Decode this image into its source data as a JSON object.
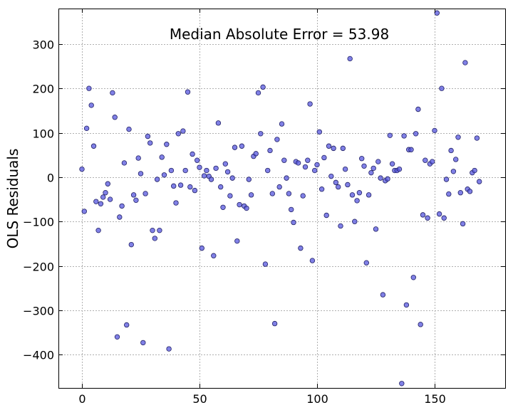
{
  "chart_data": {
    "type": "scatter",
    "title": "",
    "xlabel": "",
    "ylabel": "OLS Residuals",
    "annotation": "Median Absolute Error = 53.98",
    "xlim": [
      -10,
      180
    ],
    "ylim": [
      -475,
      380
    ],
    "xticks": [
      0,
      50,
      100,
      150
    ],
    "yticks": [
      -400,
      -300,
      -200,
      -100,
      0,
      100,
      200,
      300
    ],
    "xtick_labels": [
      "0",
      "50",
      "100",
      "150"
    ],
    "ytick_labels": [
      "−400",
      "−300",
      "−200",
      "−100",
      "0",
      "100",
      "200",
      "300"
    ],
    "grid": true,
    "marker_color": "#5555dd",
    "series": [
      {
        "x": [
          0,
          1,
          2,
          3,
          4,
          5,
          6,
          7,
          8,
          9,
          10,
          11,
          12,
          13,
          14,
          15,
          16,
          17,
          18,
          19,
          20,
          21,
          22,
          23,
          24,
          25,
          26,
          27,
          28,
          29,
          30,
          31,
          32,
          33,
          34,
          35,
          36,
          37,
          38,
          39,
          40,
          41,
          42,
          43,
          44,
          45,
          46,
          47,
          48,
          49,
          50,
          51,
          52,
          53,
          54,
          55,
          56,
          57,
          58,
          59,
          60,
          61,
          62,
          63,
          64,
          65,
          66,
          67,
          68,
          69,
          70,
          71,
          72,
          73,
          74,
          75,
          76,
          77,
          78,
          79,
          80,
          81,
          82,
          83,
          84,
          85,
          86,
          87,
          88,
          89,
          90,
          91,
          92,
          93,
          94,
          95,
          96,
          97,
          98,
          99,
          100,
          101,
          102,
          103,
          104,
          105,
          106,
          107,
          108,
          109,
          110,
          111,
          112,
          113,
          114,
          115,
          116,
          117,
          118,
          119,
          120,
          121,
          122,
          123,
          124,
          125,
          126,
          127,
          128,
          129,
          130,
          131,
          132,
          133,
          134,
          135,
          136,
          137,
          138,
          139,
          140,
          141,
          142,
          143,
          144,
          145,
          146,
          147,
          148,
          149,
          150,
          151,
          152,
          153,
          154,
          155,
          156,
          157,
          158,
          159,
          160,
          161,
          162,
          163,
          164,
          165,
          166,
          167,
          168,
          169
        ],
        "y": [
          18,
          -77,
          110,
          200,
          162,
          70,
          -55,
          -120,
          -60,
          -45,
          -35,
          -15,
          -50,
          190,
          135,
          -360,
          -90,
          -65,
          32,
          -333,
          108,
          -152,
          -40,
          -52,
          43,
          8,
          -373,
          -37,
          92,
          77,
          -120,
          -138,
          -5,
          -120,
          45,
          5,
          74,
          -387,
          15,
          -20,
          -58,
          98,
          -18,
          104,
          15,
          192,
          -22,
          52,
          -30,
          38,
          22,
          -160,
          3,
          15,
          2,
          -5,
          -177,
          20,
          122,
          -22,
          -68,
          30,
          12,
          -42,
          -2,
          67,
          -144,
          -62,
          70,
          -65,
          -70,
          -5,
          -40,
          47,
          53,
          190,
          98,
          203,
          -196,
          15,
          60,
          -37,
          -330,
          85,
          -22,
          120,
          38,
          -2,
          -37,
          -73,
          -102,
          35,
          32,
          -160,
          -42,
          23,
          38,
          165,
          -188,
          15,
          28,
          102,
          -27,
          44,
          -86,
          70,
          2,
          65,
          -12,
          -22,
          -110,
          65,
          18,
          -17,
          267,
          -40,
          -100,
          -53,
          -35,
          42,
          25,
          -193,
          -40,
          10,
          20,
          -117,
          35,
          -2,
          -265,
          -8,
          -4,
          94,
          30,
          15,
          15,
          18,
          -465,
          93,
          -288,
          62,
          62,
          -226,
          98,
          153,
          -332,
          -85,
          38,
          -92,
          30,
          35,
          105,
          370,
          -83,
          200,
          -92,
          -5,
          -38,
          60,
          13,
          40,
          90,
          -35,
          -105,
          258,
          -27,
          -32,
          10,
          15,
          88,
          -10
        ]
      }
    ]
  }
}
